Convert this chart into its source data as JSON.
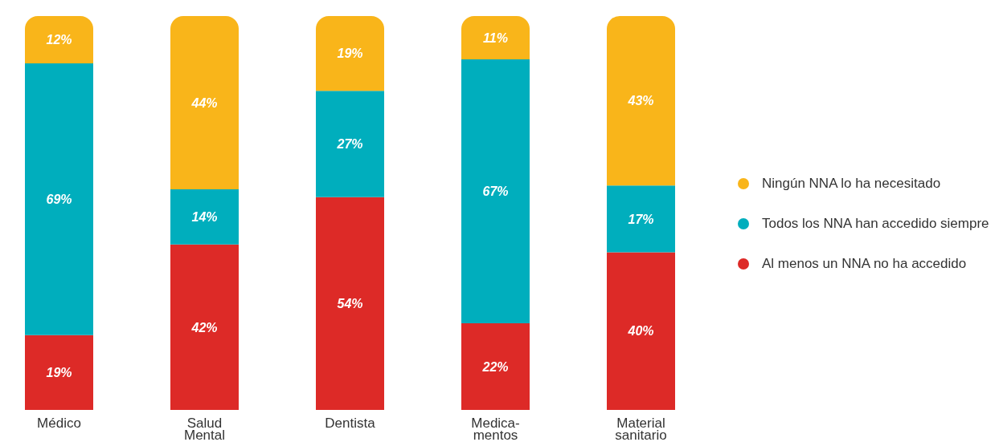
{
  "chart_data": {
    "type": "bar",
    "stacked": true,
    "legend": "right",
    "categories": [
      "Médico",
      "Salud\nMental",
      "Dentista",
      "Medica-\nmentos",
      "Material\nsanitario"
    ],
    "series": [
      {
        "name": "Al menos un NNA no ha accedido",
        "color": "#dd2a27",
        "values": [
          19,
          42,
          54,
          22,
          40
        ],
        "value_labels": [
          "19%",
          "42%",
          "54%",
          "22%",
          "40%"
        ]
      },
      {
        "name": "Todos los NNA han accedido siempre",
        "color": "#00aebd",
        "values": [
          69,
          14,
          27,
          67,
          17
        ],
        "value_labels": [
          "69%",
          "14%",
          "27%",
          "67%",
          "17%"
        ]
      },
      {
        "name": "Ningún NNA lo ha necesitado",
        "color": "#f9b51a",
        "values": [
          12,
          44,
          19,
          11,
          43
        ],
        "value_labels": [
          "12%",
          "44%",
          "19%",
          "11%",
          "43%"
        ]
      }
    ]
  }
}
